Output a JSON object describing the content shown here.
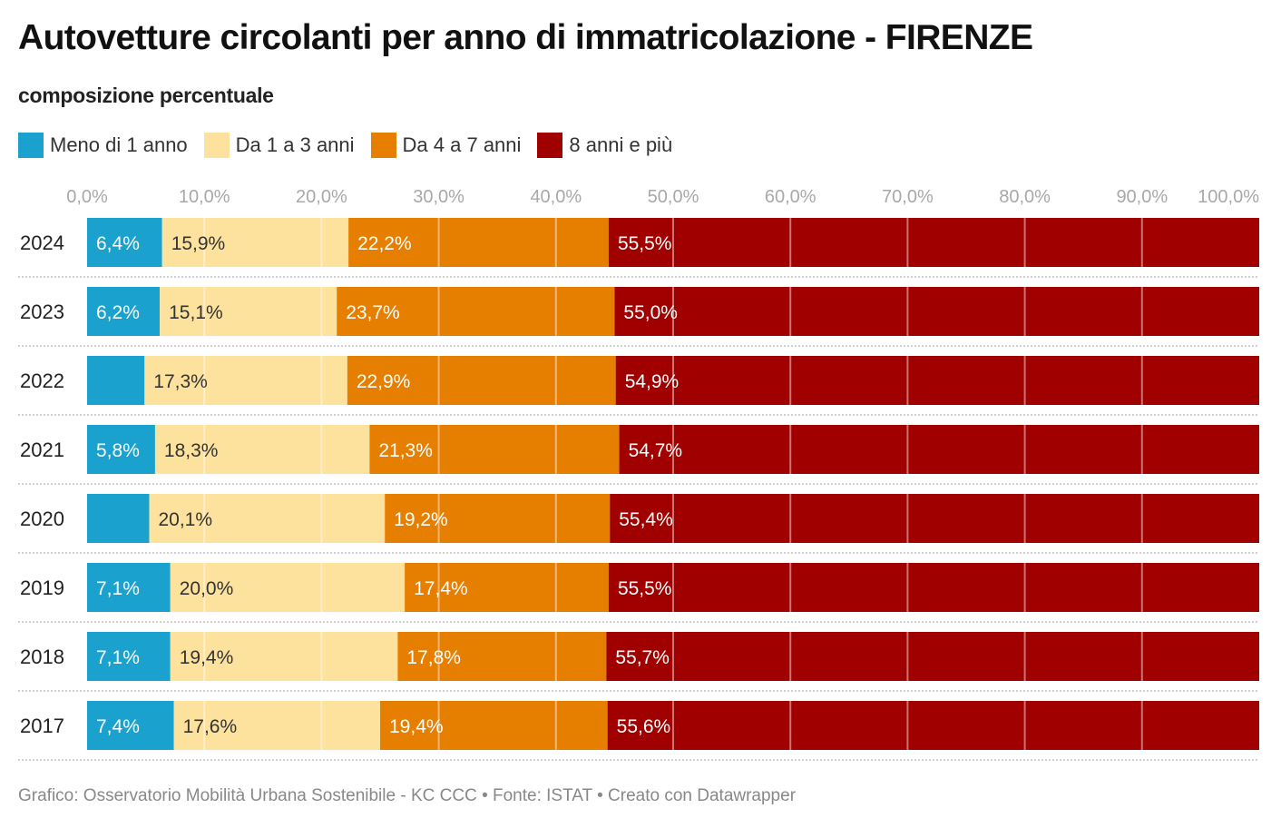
{
  "title": "Autovetture circolanti per anno di immatricolazione - FIRENZE",
  "subtitle": "composizione percentuale",
  "footer": "Grafico: Osservatorio Mobilità Urbana Sostenibile - KC CCC • Fonte: ISTAT • Creato con Datawrapper",
  "chart_data": {
    "type": "bar",
    "orientation": "horizontal",
    "stacked": true,
    "title": "Autovetture circolanti per anno di immatricolazione - FIRENZE",
    "subtitle": "composizione percentuale",
    "xlabel": "",
    "ylabel": "",
    "xlim": [
      0,
      100
    ],
    "x_ticks": [
      "0,0%",
      "10,0%",
      "20,0%",
      "30,0%",
      "40,0%",
      "50,0%",
      "60,0%",
      "70,0%",
      "80,0%",
      "90,0%",
      "100,0%"
    ],
    "grid": true,
    "legend_position": "top-left",
    "categories": [
      "2024",
      "2023",
      "2022",
      "2021",
      "2020",
      "2019",
      "2018",
      "2017"
    ],
    "series": [
      {
        "name": "Meno di 1 anno",
        "color": "#1aa1ce",
        "values": [
          6.4,
          6.2,
          4.9,
          5.8,
          5.3,
          7.1,
          7.1,
          7.4
        ],
        "labels": [
          "6,4%",
          "6,2%",
          "",
          "5,8%",
          "",
          "7,1%",
          "7,1%",
          "7,4%"
        ],
        "label_color": "#ffffff"
      },
      {
        "name": "Da 1 a 3 anni",
        "color": "#fde29d",
        "values": [
          15.9,
          15.1,
          17.3,
          18.3,
          20.1,
          20.0,
          19.4,
          17.6
        ],
        "labels": [
          "15,9%",
          "15,1%",
          "17,3%",
          "18,3%",
          "20,1%",
          "20,0%",
          "19,4%",
          "17,6%"
        ],
        "label_color": "#333333"
      },
      {
        "name": "Da 4 a 7 anni",
        "color": "#e67e00",
        "values": [
          22.2,
          23.7,
          22.9,
          21.3,
          19.2,
          17.4,
          17.8,
          19.4
        ],
        "labels": [
          "22,2%",
          "23,7%",
          "22,9%",
          "21,3%",
          "19,2%",
          "17,4%",
          "17,8%",
          "19,4%"
        ],
        "label_color": "#ffffff"
      },
      {
        "name": "8 anni e più",
        "color": "#a00000",
        "values": [
          55.5,
          55.0,
          54.9,
          54.7,
          55.4,
          55.5,
          55.7,
          55.6
        ],
        "labels": [
          "55,5%",
          "55,0%",
          "54,9%",
          "54,7%",
          "55,4%",
          "55,5%",
          "55,7%",
          "55,6%"
        ],
        "label_color": "#ffffff"
      }
    ]
  }
}
